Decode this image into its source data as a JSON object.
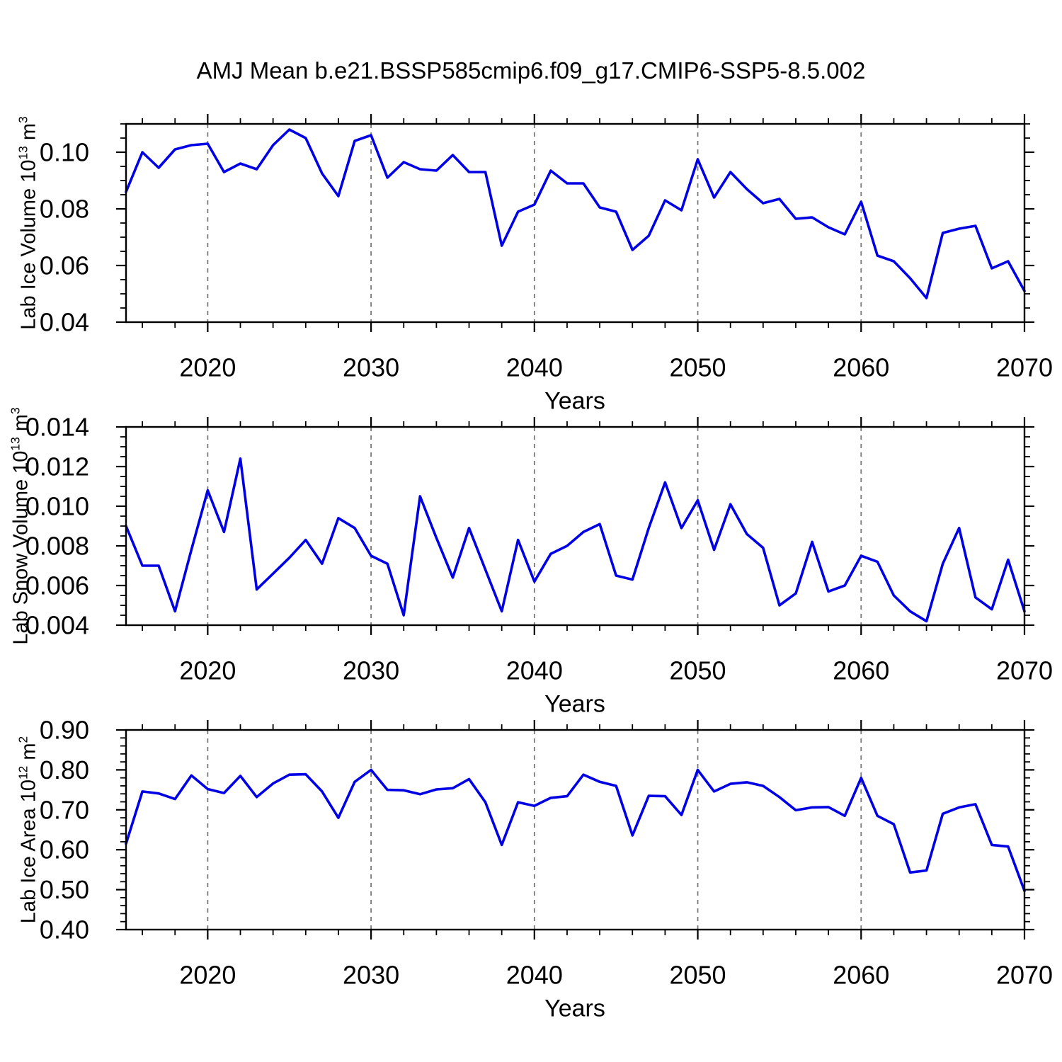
{
  "title": "AMJ Mean b.e21.BSSP585cmip6.f09_g17.CMIP6-SSP5-8.5.002",
  "colors": {
    "line": "#0000e5",
    "grid": "#7a7a7a",
    "axis": "#000000",
    "background": "#ffffff"
  },
  "x_axis": {
    "label": "Years",
    "range": [
      2015,
      2070
    ],
    "tick_years": [
      2020,
      2030,
      2040,
      2050,
      2060,
      2070
    ],
    "tick_labels": [
      "2020",
      "2030",
      "2040",
      "2050",
      "2060",
      "2070"
    ],
    "minor_tick_step_years": 2,
    "gridline_years": [
      2020,
      2030,
      2040,
      2050,
      2060
    ],
    "gridline_style": "dashed"
  },
  "chart_data": [
    {
      "type": "line",
      "name": "lab-ice-volume",
      "ylabel": {
        "full": "Lab Ice Volume 10^13 m^3",
        "prefix": "Lab Ice Volume 10",
        "exp": "13",
        "unit": " m",
        "unit_exp": "3"
      },
      "xlabel": "Years",
      "ylim": [
        0.04,
        0.11
      ],
      "ytick_values": [
        0.1,
        0.08,
        0.06,
        0.04
      ],
      "ytick_labels": [
        "0.10",
        "0.08",
        "0.06",
        "0.04"
      ],
      "y_minor_step": 0.005,
      "y_major_step": 0.02,
      "legend": "none",
      "grid": "vertical-dashed-only",
      "x": [
        2015,
        2016,
        2017,
        2018,
        2019,
        2020,
        2021,
        2022,
        2023,
        2024,
        2025,
        2026,
        2027,
        2028,
        2029,
        2030,
        2031,
        2032,
        2033,
        2034,
        2035,
        2036,
        2037,
        2038,
        2039,
        2040,
        2041,
        2042,
        2043,
        2044,
        2045,
        2046,
        2047,
        2048,
        2049,
        2050,
        2051,
        2052,
        2053,
        2054,
        2055,
        2056,
        2057,
        2058,
        2059,
        2060,
        2061,
        2062,
        2063,
        2064,
        2065,
        2066,
        2067,
        2068,
        2069,
        2070
      ],
      "values": [
        0.086,
        0.1,
        0.0945,
        0.101,
        0.1025,
        0.103,
        0.093,
        0.096,
        0.094,
        0.1025,
        0.108,
        0.105,
        0.0925,
        0.0845,
        0.104,
        0.106,
        0.091,
        0.0965,
        0.094,
        0.0935,
        0.099,
        0.093,
        0.093,
        0.067,
        0.079,
        0.0815,
        0.0935,
        0.089,
        0.089,
        0.0805,
        0.079,
        0.0655,
        0.0705,
        0.083,
        0.0795,
        0.0975,
        0.084,
        0.093,
        0.087,
        0.082,
        0.0835,
        0.0765,
        0.077,
        0.0735,
        0.071,
        0.0825,
        0.0635,
        0.0615,
        0.0555,
        0.0485,
        0.0715,
        0.073,
        0.074,
        0.059,
        0.0615,
        0.051
      ]
    },
    {
      "type": "line",
      "name": "lab-snow-volume",
      "ylabel": {
        "full": "Lab Snow Volume 10^13 m^3",
        "prefix": "Lab Snow Volume 10",
        "exp": "13",
        "unit": " m",
        "unit_exp": "3"
      },
      "xlabel": "Years",
      "ylim": [
        0.004,
        0.014
      ],
      "ytick_values": [
        0.014,
        0.012,
        0.01,
        0.008,
        0.006,
        0.004
      ],
      "ytick_labels": [
        "0.014",
        "0.012",
        "0.010",
        "0.008",
        "0.006",
        "0.004"
      ],
      "y_minor_step": 0.0005,
      "y_major_step": 0.002,
      "legend": "none",
      "grid": "vertical-dashed-only",
      "x": [
        2015,
        2016,
        2017,
        2018,
        2019,
        2020,
        2021,
        2022,
        2023,
        2024,
        2025,
        2026,
        2027,
        2028,
        2029,
        2030,
        2031,
        2032,
        2033,
        2034,
        2035,
        2036,
        2037,
        2038,
        2039,
        2040,
        2041,
        2042,
        2043,
        2044,
        2045,
        2046,
        2047,
        2048,
        2049,
        2050,
        2051,
        2052,
        2053,
        2054,
        2055,
        2056,
        2057,
        2058,
        2059,
        2060,
        2061,
        2062,
        2063,
        2064,
        2065,
        2066,
        2067,
        2068,
        2069,
        2070
      ],
      "values": [
        0.009,
        0.007,
        0.007,
        0.0047,
        0.0078,
        0.0108,
        0.0087,
        0.0124,
        0.0058,
        0.0066,
        0.0074,
        0.0083,
        0.0071,
        0.0094,
        0.0089,
        0.0075,
        0.0071,
        0.0045,
        0.0105,
        0.0084,
        0.0064,
        0.0089,
        0.0068,
        0.0047,
        0.0083,
        0.0062,
        0.0076,
        0.008,
        0.0087,
        0.0091,
        0.0065,
        0.0063,
        0.0089,
        0.0112,
        0.0089,
        0.0103,
        0.0078,
        0.0101,
        0.0086,
        0.0079,
        0.005,
        0.0056,
        0.0082,
        0.0057,
        0.006,
        0.0075,
        0.0072,
        0.0055,
        0.0047,
        0.0042,
        0.0071,
        0.0089,
        0.0054,
        0.0048,
        0.0073,
        0.0047
      ]
    },
    {
      "type": "line",
      "name": "lab-ice-area",
      "ylabel": {
        "full": "Lab Ice Area 10^12 m^2",
        "prefix": "Lab Ice Area 10",
        "exp": "12",
        "unit": " m",
        "unit_exp": "2"
      },
      "xlabel": "Years",
      "ylim": [
        0.4,
        0.9
      ],
      "ytick_values": [
        0.9,
        0.8,
        0.7,
        0.6,
        0.5,
        0.4
      ],
      "ytick_labels": [
        "0.90",
        "0.80",
        "0.70",
        "0.60",
        "0.50",
        "0.40"
      ],
      "y_minor_step": 0.02,
      "y_major_step": 0.1,
      "legend": "none",
      "grid": "vertical-dashed-only",
      "x": [
        2015,
        2016,
        2017,
        2018,
        2019,
        2020,
        2021,
        2022,
        2023,
        2024,
        2025,
        2026,
        2027,
        2028,
        2029,
        2030,
        2031,
        2032,
        2033,
        2034,
        2035,
        2036,
        2037,
        2038,
        2039,
        2040,
        2041,
        2042,
        2043,
        2044,
        2045,
        2046,
        2047,
        2048,
        2049,
        2050,
        2051,
        2052,
        2053,
        2054,
        2055,
        2056,
        2057,
        2058,
        2059,
        2060,
        2061,
        2062,
        2063,
        2064,
        2065,
        2066,
        2067,
        2068,
        2069,
        2070
      ],
      "values": [
        0.615,
        0.746,
        0.741,
        0.727,
        0.786,
        0.752,
        0.742,
        0.785,
        0.732,
        0.766,
        0.788,
        0.789,
        0.746,
        0.68,
        0.77,
        0.8,
        0.75,
        0.749,
        0.739,
        0.751,
        0.754,
        0.777,
        0.719,
        0.612,
        0.719,
        0.71,
        0.73,
        0.734,
        0.788,
        0.77,
        0.76,
        0.636,
        0.735,
        0.734,
        0.687,
        0.8,
        0.746,
        0.765,
        0.769,
        0.76,
        0.732,
        0.699,
        0.706,
        0.707,
        0.685,
        0.78,
        0.685,
        0.664,
        0.543,
        0.548,
        0.69,
        0.706,
        0.714,
        0.612,
        0.608,
        0.497
      ]
    }
  ]
}
